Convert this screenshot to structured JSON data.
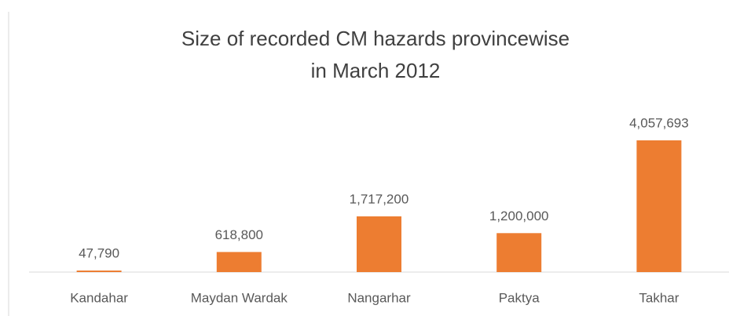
{
  "chart_data": {
    "type": "bar",
    "title": [
      "Size of recorded CM hazards provincewise",
      "in March 2012"
    ],
    "categories": [
      "Kandahar",
      "Maydan Wardak",
      "Nangarhar",
      "Paktya",
      "Takhar"
    ],
    "values": [
      47790,
      618800,
      1717200,
      1200000,
      4057693
    ],
    "value_labels": [
      "47,790",
      "618,800",
      "1,717,200",
      "1,200,000",
      "4,057,693"
    ],
    "color": "#ed7d31"
  }
}
